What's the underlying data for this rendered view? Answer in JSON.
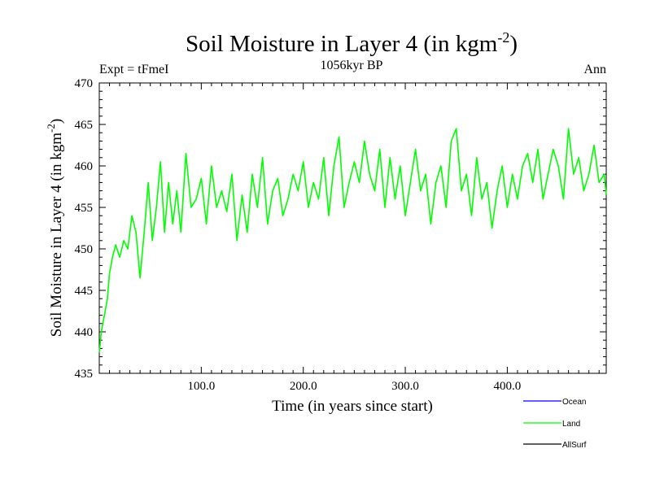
{
  "chart_data": {
    "type": "line",
    "title": "Soil Moisture in Layer 4 (in kgm",
    "title_sup": "-2",
    "title_close": ")",
    "subtitle": "1056kyr BP",
    "left_label": "Expt = tFmeI",
    "right_label": "Ann",
    "xlabel": "Time (in years since start)",
    "ylabel": "Soil Moisture in Layer 4 (in kgm",
    "ylabel_sup": "-2",
    "ylabel_close": ")",
    "xlim": [
      0,
      497
    ],
    "ylim": [
      435,
      470
    ],
    "xticks": [
      100,
      200,
      300,
      400
    ],
    "xtick_labels": [
      "100.0",
      "200.0",
      "300.0",
      "400.0"
    ],
    "yticks": [
      435,
      440,
      445,
      450,
      455,
      460,
      465,
      470
    ],
    "ytick_labels": [
      "435",
      "440",
      "445",
      "450",
      "455",
      "460",
      "465",
      "470"
    ],
    "legend_position": "bottom-right",
    "series": [
      {
        "name": "Ocean",
        "color": "#0000ff",
        "values": []
      },
      {
        "name": "Land",
        "color": "#00ff00",
        "x": [
          0,
          2,
          5,
          8,
          10,
          13,
          16,
          20,
          24,
          28,
          32,
          36,
          40,
          44,
          48,
          52,
          56,
          60,
          64,
          68,
          72,
          76,
          80,
          85,
          90,
          95,
          100,
          105,
          110,
          115,
          120,
          125,
          130,
          135,
          140,
          145,
          150,
          155,
          160,
          165,
          170,
          175,
          180,
          185,
          190,
          195,
          200,
          205,
          210,
          215,
          220,
          225,
          230,
          235,
          240,
          245,
          250,
          255,
          260,
          265,
          270,
          275,
          280,
          285,
          290,
          295,
          300,
          305,
          310,
          315,
          320,
          325,
          330,
          335,
          340,
          345,
          350,
          355,
          360,
          365,
          370,
          375,
          380,
          385,
          390,
          395,
          400,
          405,
          410,
          415,
          420,
          425,
          430,
          435,
          440,
          445,
          450,
          455,
          460,
          465,
          470,
          475,
          480,
          485,
          490,
          495,
          497
        ],
        "values": [
          437.5,
          440,
          442,
          444,
          447,
          449,
          450.5,
          449,
          451,
          450,
          454,
          452,
          446.5,
          452,
          458,
          451,
          455,
          460.5,
          452,
          458,
          453,
          457,
          452,
          461.5,
          455,
          456,
          458.5,
          453,
          460,
          455,
          457,
          454.5,
          459,
          451,
          456.5,
          452,
          459,
          455,
          461,
          453,
          457,
          458.5,
          454,
          456,
          459,
          457,
          460.5,
          455,
          458,
          456,
          461,
          454,
          460,
          463.5,
          455,
          458,
          460.5,
          458,
          463,
          459,
          457,
          462,
          455,
          461,
          456,
          460,
          454,
          458,
          462,
          457,
          459,
          453,
          458,
          460,
          455,
          463,
          464.5,
          457,
          459,
          454,
          461,
          456,
          458,
          452.5,
          457,
          460,
          455,
          459,
          456,
          460,
          461.5,
          458,
          462,
          456,
          459,
          462,
          460,
          456,
          464.5,
          459,
          461,
          457,
          459,
          462.5,
          458,
          459,
          456.5
        ]
      },
      {
        "name": "AllSurf",
        "color": "#000000",
        "values": []
      }
    ]
  }
}
